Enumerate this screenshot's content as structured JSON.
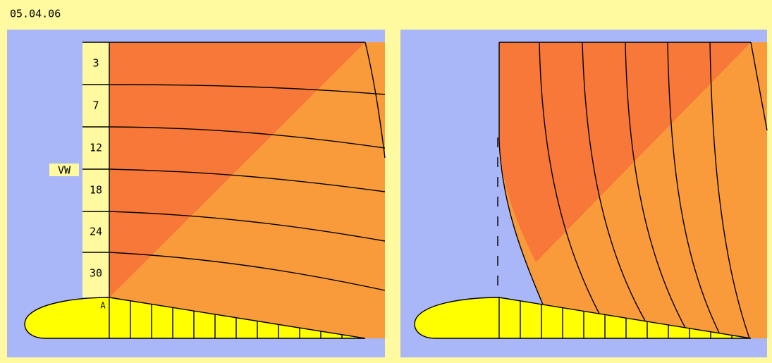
{
  "header": {
    "date": "05.04.06"
  },
  "left_panel": {
    "scale_labels": [
      "3",
      "7",
      "12",
      "18",
      "24",
      "30"
    ],
    "airfoil_label": "A",
    "axis_label": "VW"
  }
}
